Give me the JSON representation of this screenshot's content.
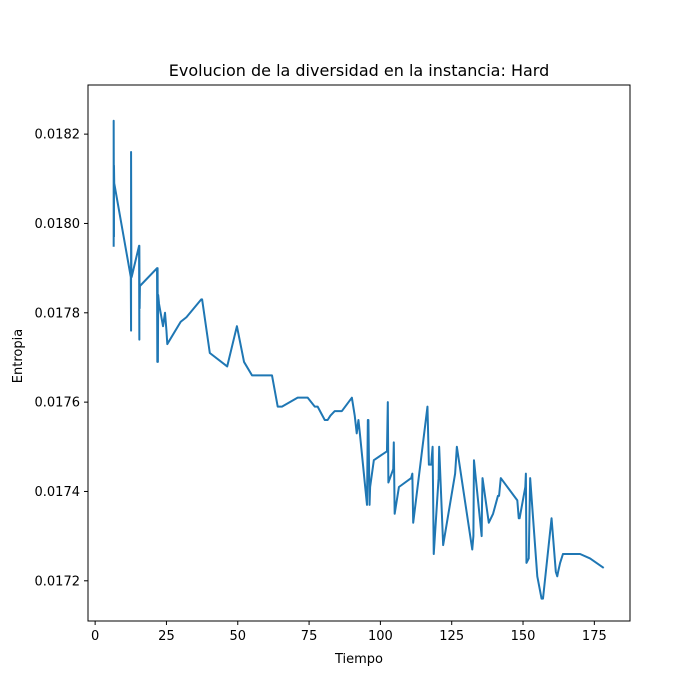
{
  "chart_data": {
    "type": "line",
    "title": "Evolucion de la diversidad en la instancia: Hard",
    "xlabel": "Tiempo",
    "ylabel": "Entropia",
    "xlim": [
      -2.5,
      187.5
    ],
    "ylim": [
      0.01711,
      0.01831
    ],
    "xticks": [
      0,
      25,
      50,
      75,
      100,
      125,
      150,
      175
    ],
    "xtick_labels": [
      "0",
      "25",
      "50",
      "75",
      "100",
      "125",
      "150",
      "175"
    ],
    "yticks": [
      0.0172,
      0.0174,
      0.0176,
      0.0178,
      0.018,
      0.0182
    ],
    "ytick_labels": [
      "0.0172",
      "0.0174",
      "0.0176",
      "0.0178",
      "0.0180",
      "0.0182"
    ],
    "grid": false,
    "series": [
      {
        "color": "#1f77b4",
        "x": [
          6.5,
          6.5,
          6.6,
          6.6,
          6.7,
          12.5,
          12.6,
          12.6,
          12.7,
          12.8,
          15.4,
          15.5,
          15.5,
          15.6,
          15.7,
          21.7,
          21.8,
          21.9,
          22.0,
          22.1,
          22.4,
          23.8,
          24.5,
          25.0,
          25.3,
          30.0,
          32.0,
          37.2,
          37.5,
          40.2,
          46.3,
          49.7,
          52.2,
          55.0,
          62.0,
          64.0,
          65.5,
          71.0,
          74.5,
          77.0,
          78.0,
          80.5,
          81.5,
          82.5,
          84.0,
          86.5,
          90.0,
          91.0,
          91.7,
          92.3,
          92.8,
          95.3,
          95.6,
          95.8,
          96.2,
          96.4,
          97.7,
          102.3,
          102.6,
          102.8,
          104.5,
          104.7,
          105.0,
          106.5,
          110.8,
          111.2,
          111.5,
          116.5,
          117.0,
          117.8,
          118.3,
          118.7,
          120.4,
          120.6,
          122.0,
          126.2,
          126.8,
          132.2,
          132.6,
          132.8,
          135.5,
          135.6,
          135.8,
          138.0,
          139.5,
          141.2,
          141.6,
          142.2,
          148.0,
          148.5,
          148.8,
          150.8,
          151.0,
          151.2,
          152.0,
          152.5,
          155.0,
          156.5,
          157.0,
          160.0,
          161.5,
          162.0,
          162.3,
          163.0,
          164.0,
          170.0,
          173.5,
          178.0
        ],
        "y": [
          0.01795,
          0.01823,
          0.01797,
          0.01813,
          0.01809,
          0.01788,
          0.01776,
          0.01816,
          0.0179,
          0.01788,
          0.01795,
          0.01774,
          0.01795,
          0.01781,
          0.01786,
          0.0179,
          0.01769,
          0.0179,
          0.01769,
          0.01784,
          0.01782,
          0.01777,
          0.0178,
          0.01776,
          0.01773,
          0.01778,
          0.01779,
          0.01783,
          0.01783,
          0.01771,
          0.01768,
          0.01777,
          0.01769,
          0.01766,
          0.01766,
          0.01759,
          0.01759,
          0.01761,
          0.01761,
          0.01759,
          0.01759,
          0.01756,
          0.01756,
          0.01757,
          0.01758,
          0.01758,
          0.01761,
          0.01757,
          0.01753,
          0.01756,
          0.01753,
          0.01737,
          0.01756,
          0.01756,
          0.01737,
          0.01741,
          0.01747,
          0.01749,
          0.0176,
          0.01742,
          0.01745,
          0.01751,
          0.01735,
          0.01741,
          0.01743,
          0.01744,
          0.01733,
          0.01759,
          0.01746,
          0.01746,
          0.0175,
          0.01726,
          0.01743,
          0.0175,
          0.01728,
          0.01744,
          0.0175,
          0.01727,
          0.0173,
          0.01747,
          0.0173,
          0.01736,
          0.01743,
          0.01733,
          0.01735,
          0.01739,
          0.01739,
          0.01743,
          0.01738,
          0.01734,
          0.01734,
          0.01741,
          0.01744,
          0.01724,
          0.01725,
          0.01743,
          0.01721,
          0.01716,
          0.01716,
          0.01734,
          0.01722,
          0.01721,
          0.01722,
          0.01724,
          0.01726,
          0.01726,
          0.01725,
          0.01723
        ]
      }
    ]
  }
}
